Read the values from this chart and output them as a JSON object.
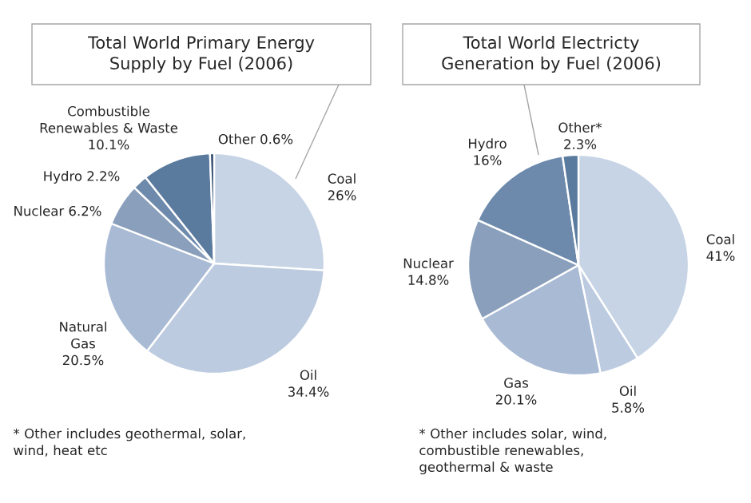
{
  "chart_data": [
    {
      "type": "pie",
      "title": "Total World Primary Energy Supply by Fuel (2006)",
      "categories": [
        "Coal",
        "Oil",
        "Natural Gas",
        "Nuclear",
        "Hydro",
        "Combustible Renewables & Waste",
        "Other"
      ],
      "values": [
        26,
        34.4,
        20.5,
        6.2,
        2.2,
        10.1,
        0.6
      ],
      "value_labels": [
        "26%",
        "34.4%",
        "20.5%",
        "6.2%",
        "2.2%",
        "10.1%",
        "0.6%"
      ],
      "colors": [
        "#c6d4e6",
        "#bccbe0",
        "#a9bad4",
        "#8a9fbb",
        "#6d8aac",
        "#5a7a9e",
        "#2e4a6e"
      ],
      "annotations": [
        "* Other includes geothermal, solar, wind, heat etc"
      ]
    },
    {
      "type": "pie",
      "title": "Total World Electricty Generation by Fuel (2006)",
      "categories": [
        "Coal",
        "Oil",
        "Gas",
        "Nuclear",
        "Hydro",
        "Other*"
      ],
      "values": [
        41,
        5.8,
        20.1,
        14.8,
        16,
        2.3
      ],
      "value_labels": [
        "41%",
        "5.8%",
        "20.1%",
        "14.8%",
        "16%",
        "2.3%"
      ],
      "colors": [
        "#c6d4e6",
        "#bccbe0",
        "#a9bad4",
        "#8a9fbb",
        "#6d8aac",
        "#5a7a9e"
      ],
      "annotations": [
        "* Other includes solar, wind, combustible renewables, geothermal & waste"
      ]
    }
  ]
}
